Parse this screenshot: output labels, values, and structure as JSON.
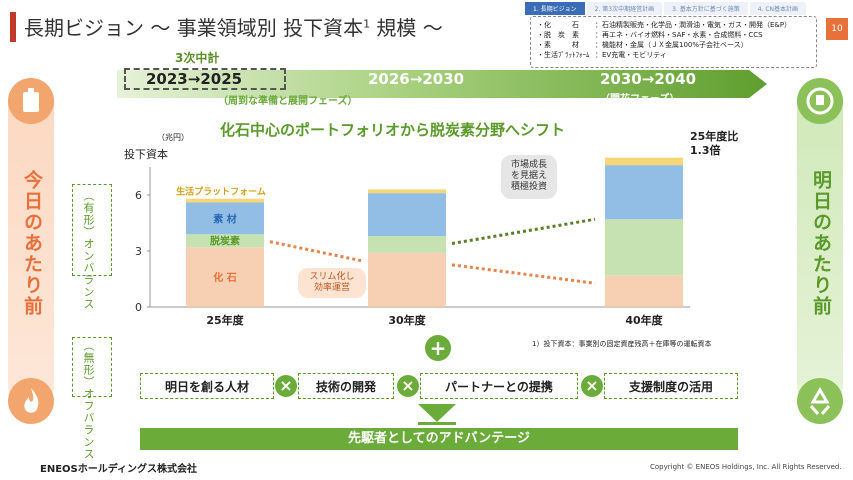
{
  "title": {
    "text": "長期ビジョン 〜 事業領域別 投下資本",
    "sup": "1",
    "suffix": " 規模 〜"
  },
  "tabs": [
    "1. 長期ビジョン",
    "2. 第3次中期経営計画",
    "3. 基本方針に基づく施策",
    "4. CN基本計画"
  ],
  "page_number": "10",
  "legend": [
    {
      "key": "・化　　　石",
      "value": "：石油精製販売・化学品・潤滑油・電気・ガス・開発（E&P）"
    },
    {
      "key": "・脱　炭　素",
      "value": "：再エネ・バイオ燃料・SAF・水素・合成燃料・CCS"
    },
    {
      "key": "・素　　　材",
      "value": "：機能材・金属（ＪＸ金属100%子会社ベース）"
    },
    {
      "key": "・生活ﾌﾟﾗｯﾄﾌｫｰﾑ",
      "value": "：EV充電・モビリティ"
    }
  ],
  "phase_label": "3次中計",
  "phases": [
    {
      "range": "2023→2025",
      "sub": "（周到な準備と展開フェーズ）"
    },
    {
      "range": "2026→2030",
      "sub": ""
    },
    {
      "range": "2030→2040",
      "sub": "（開花フェーズ）"
    }
  ],
  "left_side": "今日のあたり前",
  "right_side": "明日のあたり前",
  "headline": "化石中心のポートフォリオから脱炭素分野へシフト",
  "on_balance": "（有形）オンバランス",
  "off_balance": "（無形）オフバランス",
  "bubble_mid": "スリム化し\n効率運営",
  "bubble_top": "市場成長\nを見据え\n積極投資",
  "ratio_label": "25年度比\n1.3倍",
  "note": "1）投下資本：事業別の固定資産残高＋在庫等の運転資本",
  "factors": [
    "明日を創る人材",
    "技術の開発",
    "パートナーとの提携",
    "支援制度の活用"
  ],
  "bottom_banner": "先駆者としてのアドバンテージ",
  "footer_logo": "ENEOSホールディングス株式会社",
  "copyright": "Copyright © ENEOS Holdings, Inc. All Rights Reserved.",
  "colors": {
    "fossil": "#f6c7a6",
    "decarbon": "#bcdca4",
    "materials": "#7fb2e0",
    "life": "#f5d060",
    "accent_green": "#6aab3a",
    "accent_orange": "#e8844a"
  },
  "chart_data": {
    "type": "bar",
    "stacked": true,
    "categories": [
      "25年度",
      "30年度",
      "40年度"
    ],
    "ylabel": "投下資本",
    "yunit": "（兆円）",
    "ylim": [
      0,
      7.5
    ],
    "yticks": [
      0,
      3,
      6
    ],
    "series": [
      {
        "name": "化石",
        "values": [
          3.2,
          2.9,
          1.7
        ]
      },
      {
        "name": "脱炭素",
        "values": [
          0.7,
          0.9,
          3.0
        ]
      },
      {
        "name": "素材",
        "values": [
          1.7,
          2.3,
          2.9
        ]
      },
      {
        "name": "生活プラットフォーム",
        "values": [
          0.2,
          0.2,
          0.4
        ]
      }
    ],
    "labels": {
      "化石": "化 石",
      "脱炭素": "脱炭素",
      "素材": "素 材",
      "生活プラットフォーム": "生活プラットフォーム"
    }
  }
}
